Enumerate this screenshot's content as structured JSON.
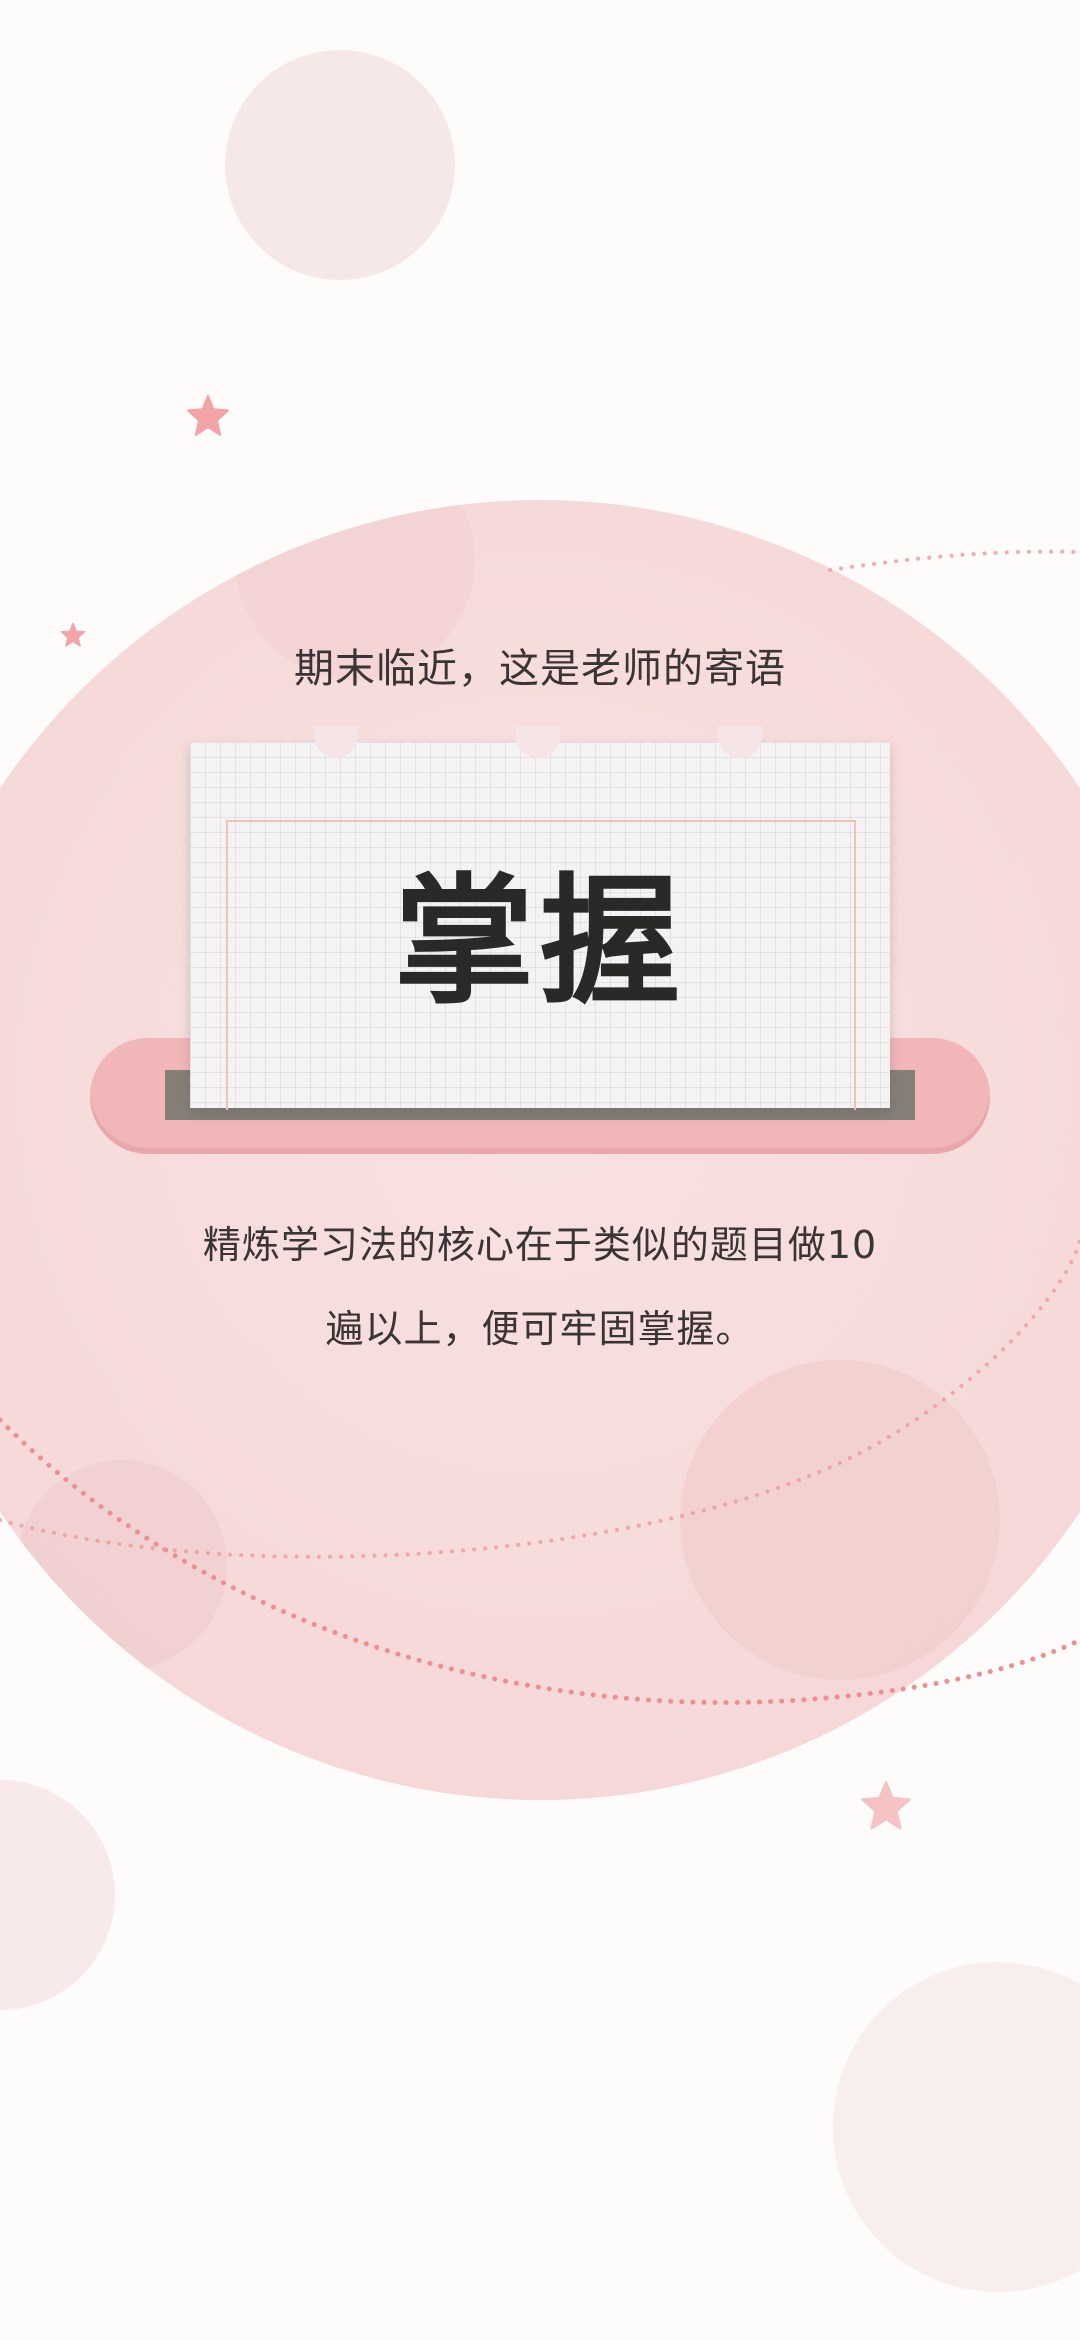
{
  "header": {
    "subtitle": "期末临近，这是老师的寄语"
  },
  "card": {
    "word": "掌握"
  },
  "message": {
    "line1": "精炼学习法的核心在于类似的题目做10",
    "line2": "遍以上，便可牢固掌握。"
  },
  "colors": {
    "background": "#fefbfb",
    "bigCircle": "#f7dcdc",
    "accentPink": "#f1b6b8",
    "starPink": "#f2a4a6",
    "dotLine": "#ee8f8f",
    "text": "#3a3434"
  },
  "icons": {
    "star": "star-icon"
  }
}
